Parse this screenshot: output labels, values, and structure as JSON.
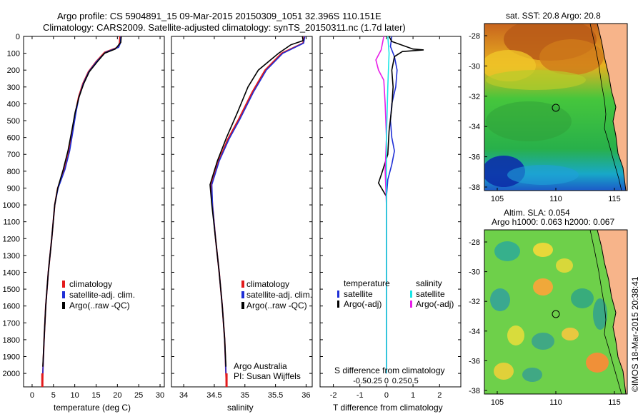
{
  "header": {
    "title_line1": "Argo profile: CS 5904891_15 09-Mar-2015 20150309_1051 32.396S 110.151E",
    "title_line2": "Climatology: CARS2009. Satellite-adjusted climatology: synTS_20150311.nc (1.7d later)"
  },
  "colors": {
    "climatology": "#e31a1c",
    "satellite": "#1f2fd6",
    "argo": "#000000",
    "argo_adj_s": "#e81ce8",
    "satellite_s": "#19e6e6"
  },
  "chart_data": [
    {
      "id": "temperature",
      "type": "line",
      "xlabel": "temperature (deg C)",
      "ylabel": "",
      "xlim": [
        -2,
        31
      ],
      "ylim": [
        2080,
        0
      ],
      "xticks": [
        0,
        5,
        10,
        15,
        20,
        25,
        30
      ],
      "yticks": [
        0,
        100,
        200,
        300,
        400,
        500,
        600,
        700,
        800,
        900,
        1000,
        1100,
        1200,
        1300,
        1400,
        1500,
        1600,
        1700,
        1800,
        1900,
        2000
      ],
      "legend": [
        "climatology",
        "satellite-adj. clim.",
        "Argo(..raw -QC)"
      ],
      "series": [
        {
          "name": "climatology",
          "color": "#e31a1c",
          "points": [
            [
              20.6,
              0
            ],
            [
              20.5,
              40
            ],
            [
              20.1,
              65
            ],
            [
              17,
              95
            ],
            [
              15,
              150
            ],
            [
              13.2,
              210
            ],
            [
              11.9,
              280
            ],
            [
              10.9,
              360
            ],
            [
              10.2,
              450
            ],
            [
              9.5,
              560
            ],
            [
              8.7,
              680
            ],
            [
              7.6,
              790
            ],
            [
              6,
              900
            ],
            [
              5.3,
              1000
            ],
            [
              4.6,
              1200
            ],
            [
              3.8,
              1400
            ],
            [
              3.2,
              1600
            ],
            [
              2.8,
              1800
            ],
            [
              2.5,
              2000
            ],
            [
              2.4,
              2080
            ]
          ]
        },
        {
          "name": "satellite-adj. clim.",
          "color": "#1f2fd6",
          "points": [
            [
              20.8,
              0
            ],
            [
              20.7,
              40
            ],
            [
              20.3,
              65
            ],
            [
              17.2,
              95
            ],
            [
              15.1,
              150
            ],
            [
              13.3,
              210
            ],
            [
              12,
              280
            ],
            [
              11,
              360
            ],
            [
              10.3,
              450
            ],
            [
              9.6,
              560
            ],
            [
              8.8,
              680
            ],
            [
              7.7,
              790
            ],
            [
              6.1,
              900
            ],
            [
              5.3,
              1000
            ],
            [
              4.6,
              1200
            ],
            [
              3.8,
              1400
            ],
            [
              3.2,
              1600
            ],
            [
              2.8,
              1800
            ],
            [
              2.5,
              2000
            ]
          ]
        },
        {
          "name": "Argo(..raw -QC)",
          "color": "#000000",
          "points": [
            [
              20.9,
              0
            ],
            [
              20.8,
              35
            ],
            [
              19.5,
              75
            ],
            [
              17,
              100
            ],
            [
              15.3,
              150
            ],
            [
              13.4,
              210
            ],
            [
              12.1,
              280
            ],
            [
              11,
              360
            ],
            [
              10.1,
              450
            ],
            [
              9.3,
              560
            ],
            [
              8.4,
              680
            ],
            [
              7.3,
              790
            ],
            [
              6,
              900
            ],
            [
              5.3,
              1000
            ],
            [
              4.6,
              1200
            ],
            [
              3.8,
              1400
            ],
            [
              3.2,
              1600
            ],
            [
              2.8,
              1800
            ],
            [
              2.5,
              1960
            ]
          ]
        }
      ]
    },
    {
      "id": "salinity",
      "type": "line",
      "xlabel": "salinity",
      "xlim": [
        33.8,
        36.1
      ],
      "ylim": [
        2080,
        0
      ],
      "xticks": [
        34,
        34.5,
        35,
        35.5,
        36
      ],
      "legend": [
        "climatology",
        "satellite-adj. clim.",
        "Argo(..raw -QC)"
      ],
      "series": [
        {
          "name": "climatology",
          "color": "#e31a1c",
          "points": [
            [
              35.97,
              0
            ],
            [
              35.95,
              40
            ],
            [
              35.6,
              100
            ],
            [
              35.33,
              200
            ],
            [
              35.12,
              330
            ],
            [
              34.9,
              490
            ],
            [
              34.72,
              610
            ],
            [
              34.57,
              740
            ],
            [
              34.45,
              880
            ],
            [
              34.47,
              1000
            ],
            [
              34.52,
              1200
            ],
            [
              34.58,
              1400
            ],
            [
              34.63,
              1600
            ],
            [
              34.67,
              1800
            ],
            [
              34.69,
              2000
            ],
            [
              34.7,
              2080
            ]
          ]
        },
        {
          "name": "satellite-adj. clim.",
          "color": "#1f2fd6",
          "points": [
            [
              35.98,
              0
            ],
            [
              35.96,
              40
            ],
            [
              35.62,
              100
            ],
            [
              35.35,
              200
            ],
            [
              35.14,
              330
            ],
            [
              34.92,
              490
            ],
            [
              34.74,
              610
            ],
            [
              34.58,
              740
            ],
            [
              34.46,
              880
            ],
            [
              34.47,
              1000
            ],
            [
              34.52,
              1200
            ],
            [
              34.58,
              1400
            ],
            [
              34.63,
              1600
            ],
            [
              34.67,
              1800
            ],
            [
              34.69,
              2000
            ]
          ]
        },
        {
          "name": "Argo(..raw -QC)",
          "color": "#000000",
          "points": [
            [
              35.94,
              0
            ],
            [
              35.95,
              25
            ],
            [
              35.75,
              50
            ],
            [
              35.55,
              100
            ],
            [
              35.22,
              200
            ],
            [
              35.05,
              300
            ],
            [
              34.88,
              450
            ],
            [
              34.7,
              600
            ],
            [
              34.55,
              740
            ],
            [
              34.43,
              880
            ],
            [
              34.46,
              1000
            ],
            [
              34.52,
              1200
            ],
            [
              34.58,
              1400
            ],
            [
              34.63,
              1600
            ],
            [
              34.67,
              1800
            ],
            [
              34.69,
              1960
            ]
          ]
        }
      ],
      "annotation": [
        "Argo Australia",
        "PI: Susan Wijffels"
      ]
    },
    {
      "id": "difference",
      "type": "line",
      "xlabel_bottom": "T difference from climatology",
      "xlabel_top": "S difference from climatology",
      "xlim": [
        -2.5,
        2.8
      ],
      "ylim": [
        2080,
        0
      ],
      "xticks": [
        -2,
        -1,
        0,
        1,
        2
      ],
      "s_ticks": [
        "-0.5",
        "-0.25",
        "0",
        "0.25",
        "0.5"
      ],
      "legend_headers": [
        "temperature",
        "salinity"
      ],
      "legend": [
        "satellite",
        "Argo(-adj)",
        "satellite",
        "Argo(-adj)"
      ],
      "series": [
        {
          "name": "satellite",
          "color": "#1f2fd6",
          "points": [
            [
              0.2,
              0
            ],
            [
              0.15,
              60
            ],
            [
              0.3,
              120
            ],
            [
              0.4,
              200
            ],
            [
              0.35,
              300
            ],
            [
              0.2,
              400
            ],
            [
              0.15,
              500
            ],
            [
              0.2,
              600
            ],
            [
              0.3,
              680
            ],
            [
              0.2,
              760
            ],
            [
              0.05,
              850
            ],
            [
              0,
              950
            ],
            [
              0,
              2000
            ]
          ]
        },
        {
          "name": "Argo(-adj)",
          "color": "#000000",
          "points": [
            [
              0.1,
              0
            ],
            [
              0.2,
              30
            ],
            [
              1.0,
              75
            ],
            [
              1.4,
              80
            ],
            [
              0.6,
              90
            ],
            [
              0.3,
              120
            ],
            [
              0.2,
              200
            ],
            [
              0.25,
              300
            ],
            [
              0.2,
              420
            ],
            [
              0.1,
              560
            ],
            [
              0.05,
              700
            ],
            [
              -0.15,
              800
            ],
            [
              -0.3,
              870
            ],
            [
              0,
              950
            ],
            [
              0,
              1960
            ]
          ]
        },
        {
          "name": "Argo(-adj) S",
          "color": "#e81ce8",
          "points": [
            [
              -0.1,
              0
            ],
            [
              -0.2,
              80
            ],
            [
              -0.4,
              140
            ],
            [
              -0.3,
              200
            ],
            [
              -0.1,
              260
            ],
            [
              -0.05,
              400
            ],
            [
              0,
              600
            ],
            [
              -0.05,
              800
            ],
            [
              0,
              1000
            ],
            [
              0,
              2000
            ]
          ]
        },
        {
          "name": "satellite S",
          "color": "#19e6e6",
          "points": [
            [
              0.05,
              0
            ],
            [
              0.1,
              100
            ],
            [
              0.05,
              300
            ],
            [
              0,
              600
            ],
            [
              0,
              1000
            ],
            [
              0,
              2000
            ]
          ]
        }
      ]
    }
  ],
  "maps": {
    "sst": {
      "title": "sat. SST: 20.8 Argo: 20.8",
      "yticks": [
        "-28",
        "-30",
        "-32",
        "-34",
        "-36",
        "-38"
      ],
      "xticks": [
        "105",
        "110",
        "115"
      ]
    },
    "sla": {
      "title1": "Altim. SLA: 0.054",
      "title2": "Argo h1000: 0.063 h2000: 0.067",
      "yticks": [
        "-28",
        "-30",
        "-32",
        "-34",
        "-36",
        "-38"
      ],
      "xticks": [
        "105",
        "110",
        "115"
      ]
    }
  },
  "credit": "©IMOS 18-Mar-2015 20:38:41"
}
